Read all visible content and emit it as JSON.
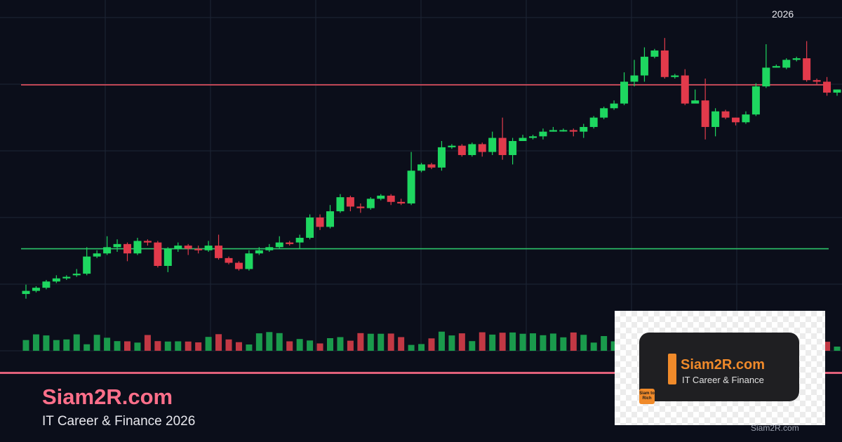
{
  "year_label": "2026",
  "brand": {
    "name": "Siam2R.com",
    "tagline": "IT Career & Finance 2026"
  },
  "logo": {
    "title": "Siam2R.com",
    "subtitle": "IT Career & Finance",
    "badge": "Siam to Rich"
  },
  "watermark": "Siam2R.com",
  "colors": {
    "background": "#0b0e1a",
    "grid": "#1e2536",
    "up": "#1ed760",
    "down": "#e23a4b",
    "volume_up": "#1a9a4c",
    "volume_down": "#c23844",
    "resistance_line": "#e85060",
    "support_line": "#2cc46a",
    "accent": "#ff6f8a",
    "logo_orange": "#f08a2a"
  },
  "chart_data": {
    "type": "candlestick",
    "y_range": [
      0,
      100
    ],
    "grid": true,
    "lines": [
      {
        "kind": "resistance",
        "value": 78
      },
      {
        "kind": "support",
        "value": 25.5
      }
    ],
    "candles": [
      [
        11,
        12,
        14,
        9.5
      ],
      [
        12,
        13,
        13.5,
        11.5
      ],
      [
        13,
        15,
        15.5,
        12.5
      ],
      [
        15,
        16,
        17,
        14.5
      ],
      [
        16,
        16.5,
        17,
        15.5
      ],
      [
        17,
        17.5,
        19,
        16.5
      ],
      [
        17.5,
        23,
        26,
        17
      ],
      [
        23,
        24,
        25,
        22.5
      ],
      [
        24,
        26,
        29.5,
        23.5
      ],
      [
        26,
        27,
        28.5,
        24.5
      ],
      [
        27,
        24,
        27.5,
        21.5
      ],
      [
        24,
        28,
        29,
        23.5
      ],
      [
        28,
        27.5,
        28.5,
        26.5
      ],
      [
        27.5,
        20,
        28,
        19.5
      ],
      [
        20,
        25.5,
        26,
        18
      ],
      [
        25.5,
        26.5,
        27.5,
        24.5
      ],
      [
        26.5,
        25.5,
        27,
        23.5
      ],
      [
        25.5,
        25,
        26.5,
        24
      ],
      [
        25,
        26.5,
        28,
        24.5
      ],
      [
        26.5,
        22.5,
        30,
        22
      ],
      [
        22.5,
        21,
        23,
        20.5
      ],
      [
        21,
        19,
        21.5,
        18.5
      ],
      [
        19,
        24,
        25,
        18.5
      ],
      [
        24,
        25,
        26,
        23.5
      ],
      [
        25,
        26,
        27,
        24.5
      ],
      [
        26,
        27.5,
        29.5,
        25.5
      ],
      [
        27.5,
        27,
        28,
        26.5
      ],
      [
        27.5,
        29,
        30,
        25.5
      ],
      [
        29,
        35.5,
        36.5,
        28.5
      ],
      [
        35.5,
        32.5,
        36.5,
        31.5
      ],
      [
        32.5,
        37.5,
        39.5,
        32
      ],
      [
        37.5,
        42,
        43,
        37
      ],
      [
        42,
        39,
        42.5,
        37.5
      ],
      [
        39,
        38.5,
        40,
        37
      ],
      [
        38.5,
        41.5,
        42,
        38
      ],
      [
        41.5,
        42.5,
        43,
        41
      ],
      [
        42.5,
        40.5,
        43,
        39.5
      ],
      [
        40.5,
        40,
        41.5,
        39.5
      ],
      [
        40,
        50.5,
        56.5,
        39.5
      ],
      [
        50.5,
        52.5,
        53,
        50
      ],
      [
        52.5,
        51.5,
        53,
        51
      ],
      [
        51.5,
        58,
        60,
        50.5
      ],
      [
        58,
        58.5,
        59,
        57.5
      ],
      [
        58.5,
        55.5,
        59,
        55
      ],
      [
        55.5,
        59,
        59.5,
        55
      ],
      [
        59,
        56.5,
        59.5,
        55
      ],
      [
        56.5,
        61,
        63,
        55.5
      ],
      [
        61,
        55.5,
        67.5,
        54
      ],
      [
        55.5,
        60,
        61,
        52.5
      ],
      [
        60,
        61,
        62,
        60
      ],
      [
        61,
        61.5,
        62,
        60.5
      ],
      [
        61.5,
        63,
        64,
        60.5
      ],
      [
        63,
        63.5,
        64.5,
        63
      ],
      [
        63.5,
        63.5,
        64,
        63
      ],
      [
        63.5,
        63,
        64,
        61.5
      ],
      [
        63,
        64.5,
        65.5,
        61
      ],
      [
        64.5,
        67.5,
        68,
        64
      ],
      [
        67.5,
        70.5,
        71,
        67
      ],
      [
        70.5,
        72,
        73,
        70
      ],
      [
        72,
        79,
        82,
        71.5
      ],
      [
        79,
        81,
        86,
        77.5
      ],
      [
        81,
        87,
        90,
        79
      ],
      [
        87,
        89,
        89.5,
        86.5
      ],
      [
        89,
        80.5,
        93,
        80
      ],
      [
        80.5,
        81,
        81.5,
        80
      ],
      [
        81,
        72,
        83,
        71.5
      ],
      [
        72,
        73,
        76.5,
        72.5
      ],
      [
        73,
        64.5,
        80,
        60.5
      ],
      [
        64.5,
        69.5,
        70.5,
        61.5
      ],
      [
        69.5,
        67.5,
        70,
        67
      ],
      [
        67.5,
        66,
        67.5,
        65
      ],
      [
        66,
        68.5,
        69.5,
        65.5
      ],
      [
        68.5,
        77.5,
        78.5,
        68
      ],
      [
        77.5,
        83.5,
        91,
        77
      ],
      [
        83.5,
        84,
        84.5,
        83.5
      ],
      [
        83.5,
        86,
        86.5,
        83
      ],
      [
        86,
        86.5,
        87,
        85.5
      ],
      [
        86.5,
        79.5,
        92,
        79
      ],
      [
        79.5,
        79,
        80,
        78
      ],
      [
        79,
        75.5,
        80.5,
        74.5
      ],
      [
        75.5,
        76.5,
        76.5,
        74.5
      ],
      [
        76.5,
        80.5,
        81.5,
        75.5
      ],
      [
        80.5,
        82,
        82.5,
        80
      ],
      [
        82,
        81.5,
        83,
        81
      ]
    ],
    "volume": [
      0.51,
      0.78,
      0.73,
      0.51,
      0.54,
      0.78,
      0.31,
      0.76,
      0.62,
      0.46,
      0.45,
      0.39,
      0.75,
      0.46,
      0.44,
      0.45,
      0.44,
      0.4,
      0.66,
      0.79,
      0.54,
      0.41,
      0.3,
      0.83,
      0.89,
      0.84,
      0.45,
      0.56,
      0.49,
      0.35,
      0.6,
      0.65,
      0.48,
      0.84,
      0.81,
      0.81,
      0.82,
      0.65,
      0.28,
      0.32,
      0.59,
      0.91,
      0.73,
      0.83,
      0.46,
      0.88,
      0.77,
      0.86,
      0.87,
      0.81,
      0.83,
      0.74,
      0.82,
      0.64,
      0.87,
      0.76,
      0.39,
      0.7,
      0.45,
      0.51,
      0.49,
      0.81,
      0.79,
      0.71,
      0.6,
      0.9,
      0.42,
      0.78,
      0.72,
      0.73,
      0.53,
      0.6,
      0.3,
      0.35,
      0.52,
      0.59,
      0.5,
      0.34,
      0.55,
      0.43,
      0.2,
      0.58,
      0.44,
      0.42
    ]
  }
}
